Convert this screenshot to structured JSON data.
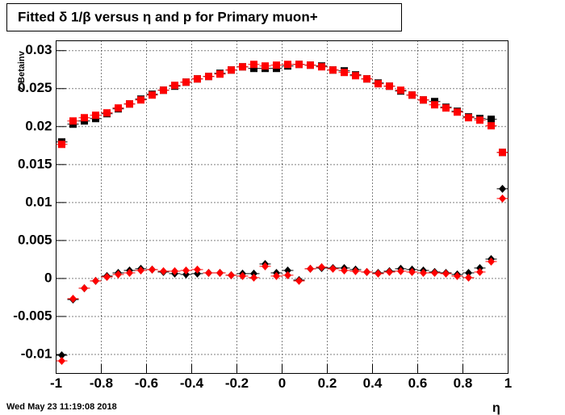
{
  "chart_data": {
    "type": "scatter",
    "title": "Fitted δ 1/β versus η and p for Primary muon+",
    "xlabel": "η",
    "ylabel": "Z Betainv",
    "timestamp": "Wed May 23 11:19:08 2018",
    "xlim": [
      -1,
      1
    ],
    "ylim": [
      -0.0125,
      0.0313
    ],
    "xticks": [
      -1,
      -0.8,
      -0.6,
      -0.4,
      -0.2,
      0,
      0.2,
      0.4,
      0.6,
      0.8,
      1
    ],
    "yticks": [
      -0.01,
      -0.005,
      0,
      0.005,
      0.01,
      0.015,
      0.02,
      0.025,
      0.03
    ],
    "grid": true,
    "x": [
      -0.975,
      -0.925,
      -0.875,
      -0.825,
      -0.775,
      -0.725,
      -0.675,
      -0.625,
      -0.575,
      -0.525,
      -0.475,
      -0.425,
      -0.375,
      -0.325,
      -0.275,
      -0.225,
      -0.175,
      -0.125,
      -0.075,
      -0.025,
      0.025,
      0.075,
      0.125,
      0.175,
      0.225,
      0.275,
      0.325,
      0.375,
      0.425,
      0.475,
      0.525,
      0.575,
      0.625,
      0.675,
      0.725,
      0.775,
      0.825,
      0.875,
      0.925,
      0.975
    ],
    "series": [
      {
        "color": "#000000",
        "marker": "square",
        "values": [
          0.01798,
          0.02032,
          0.02074,
          0.02106,
          0.0217,
          0.02234,
          0.02298,
          0.02362,
          0.02426,
          0.02479,
          0.02532,
          0.02585,
          0.02628,
          0.0266,
          0.02702,
          0.02745,
          0.02787,
          0.02766,
          0.02766,
          0.02766,
          0.02798,
          0.02819,
          0.02809,
          0.02798,
          0.02745,
          0.02734,
          0.02681,
          0.02628,
          0.02574,
          0.02532,
          0.02468,
          0.02415,
          0.02351,
          0.0233,
          0.02255,
          0.02202,
          0.02128,
          0.02106,
          0.02096,
          0.0166
        ]
      },
      {
        "color": "#ff0000",
        "marker": "square",
        "values": [
          0.01766,
          0.02074,
          0.02117,
          0.02149,
          0.02181,
          0.02245,
          0.02298,
          0.02351,
          0.02415,
          0.02479,
          0.02543,
          0.02585,
          0.02628,
          0.0266,
          0.02691,
          0.02745,
          0.02787,
          0.02819,
          0.02798,
          0.02809,
          0.02819,
          0.02819,
          0.02809,
          0.02787,
          0.02745,
          0.02713,
          0.0267,
          0.02628,
          0.02564,
          0.02532,
          0.02479,
          0.02415,
          0.02351,
          0.02287,
          0.02245,
          0.02191,
          0.02117,
          0.02085,
          0.02011,
          0.0166
        ]
      },
      {
        "color": "#000000",
        "marker": "diamond",
        "values": [
          -0.01011,
          -0.00277,
          -0.00128,
          -0.00032,
          0.00032,
          0.00074,
          0.00106,
          0.00128,
          0.00117,
          0.00085,
          0.00064,
          0.00053,
          0.00064,
          0.00074,
          0.00074,
          0.00043,
          0.00064,
          0.00064,
          0.00191,
          0.00074,
          0.00106,
          -0.00021,
          0.00128,
          0.00138,
          0.00138,
          0.00138,
          0.00117,
          0.00085,
          0.00074,
          0.00096,
          0.00128,
          0.00117,
          0.00106,
          0.00085,
          0.00074,
          0.00053,
          0.00074,
          0.00138,
          0.00255,
          0.01181
        ]
      },
      {
        "color": "#ff0000",
        "marker": "diamond",
        "values": [
          -0.01085,
          -0.00266,
          -0.00128,
          -0.00032,
          0.00021,
          0.00053,
          0.00074,
          0.00106,
          0.00117,
          0.00096,
          0.00096,
          0.00106,
          0.00117,
          0.00074,
          0.00074,
          0.00043,
          0.00032,
          0.00011,
          0.0016,
          0.00032,
          0.00043,
          -0.00032,
          0.00128,
          0.00149,
          0.00128,
          0.00106,
          0.00096,
          0.00085,
          0.00064,
          0.00085,
          0.00096,
          0.00085,
          0.00074,
          0.00074,
          0.00064,
          0.00032,
          0.00011,
          0.00085,
          0.00223,
          0.01053
        ]
      }
    ]
  }
}
